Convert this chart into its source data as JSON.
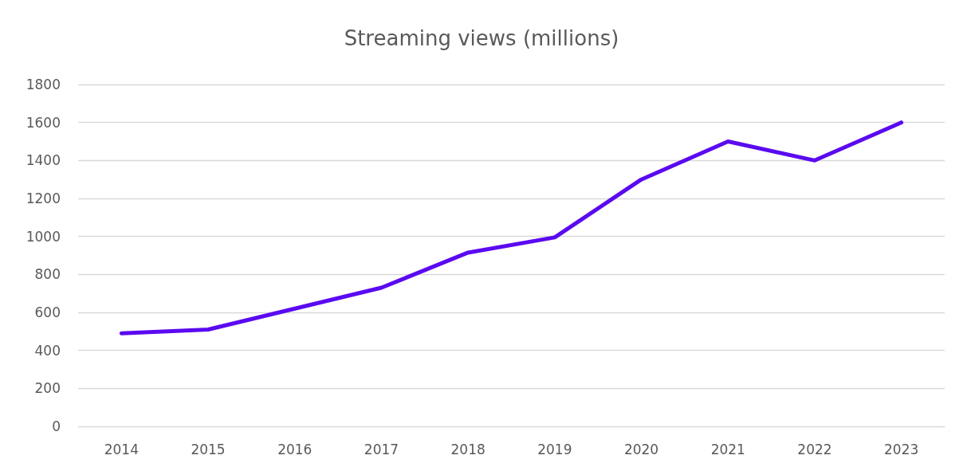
{
  "chart_data": {
    "type": "line",
    "title": "Streaming views (millions)",
    "categories": [
      "2014",
      "2015",
      "2016",
      "2017",
      "2018",
      "2019",
      "2020",
      "2021",
      "2022",
      "2023"
    ],
    "series": [
      {
        "color": "#5a0af0",
        "values": [
          490,
          510,
          620,
          730,
          915,
          995,
          1300,
          1500,
          1400,
          1600
        ]
      }
    ],
    "ylim": [
      0,
      1800
    ],
    "yticks": [
      0,
      200,
      400,
      600,
      800,
      1000,
      1200,
      1400,
      1600,
      1800
    ],
    "grid": "y",
    "marker": "none",
    "line_style": "solid"
  }
}
